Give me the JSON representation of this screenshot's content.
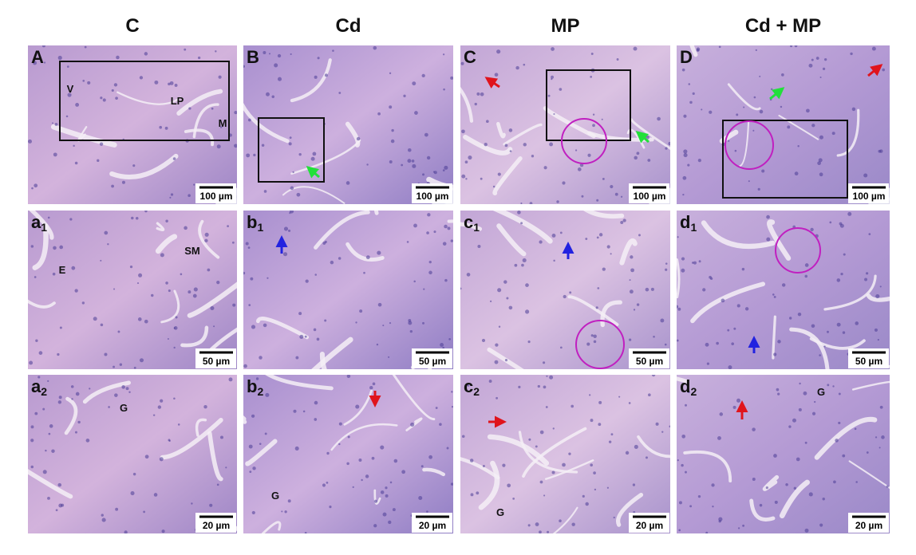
{
  "headers": [
    "C",
    "Cd",
    "MP",
    "Cd + MP"
  ],
  "panels": [
    {
      "label": "A",
      "scale": "100 µm",
      "annotations": [
        "V",
        "LP",
        "M"
      ]
    },
    {
      "label": "B",
      "scale": "100 µm",
      "annotations": []
    },
    {
      "label": "C",
      "scale": "100 µm",
      "annotations": []
    },
    {
      "label": "D",
      "scale": "100 µm",
      "annotations": []
    },
    {
      "label": "a",
      "sub": "1",
      "scale": "50 µm",
      "annotations": [
        "SM",
        "E"
      ]
    },
    {
      "label": "b",
      "sub": "1",
      "scale": "50 µm",
      "annotations": []
    },
    {
      "label": "c",
      "sub": "1",
      "scale": "50 µm",
      "annotations": []
    },
    {
      "label": "d",
      "sub": "1",
      "scale": "50 µm",
      "annotations": []
    },
    {
      "label": "a",
      "sub": "2",
      "scale": "20 µm",
      "annotations": [
        "G"
      ]
    },
    {
      "label": "b",
      "sub": "2",
      "scale": "20 µm",
      "annotations": [
        "G"
      ]
    },
    {
      "label": "c",
      "sub": "2",
      "scale": "20 µm",
      "annotations": [
        "G"
      ]
    },
    {
      "label": "d",
      "sub": "2",
      "scale": "20 µm",
      "annotations": [
        "G"
      ]
    }
  ]
}
